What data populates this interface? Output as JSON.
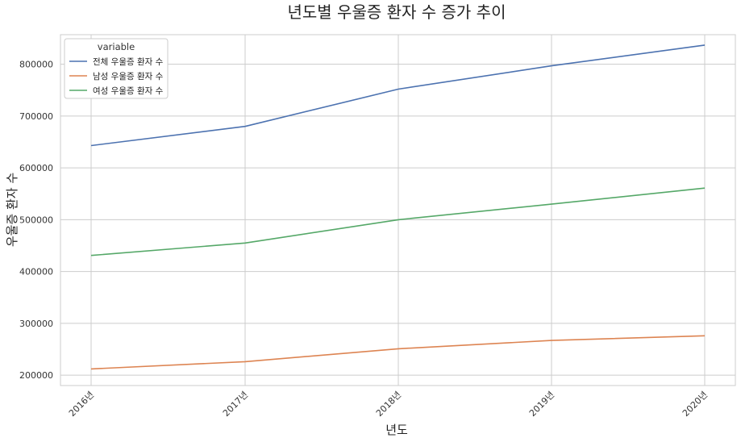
{
  "chart_data": {
    "type": "line",
    "title": "년도별 우울증 환자 수 증가 추이",
    "xlabel": "년도",
    "ylabel": "우울증 환자 수",
    "categories": [
      "2016년",
      "2017년",
      "2018년",
      "2019년",
      "2020년"
    ],
    "yticks": [
      200000,
      300000,
      400000,
      500000,
      600000,
      700000,
      800000
    ],
    "ylim": [
      180000,
      857000
    ],
    "grid": true,
    "legend": {
      "title": "variable",
      "placement": "top-left"
    },
    "series": [
      {
        "name": "전체 우울증 환자 수",
        "color": "#4c72b0",
        "values": [
          643000,
          680000,
          752000,
          797000,
          837000
        ]
      },
      {
        "name": "남성 우울증 환자 수",
        "color": "#dd8452",
        "values": [
          212000,
          226000,
          251000,
          267000,
          276000
        ]
      },
      {
        "name": "여성 우울증 환자 수",
        "color": "#55a868",
        "values": [
          431000,
          455000,
          500000,
          530000,
          561000
        ]
      }
    ]
  }
}
